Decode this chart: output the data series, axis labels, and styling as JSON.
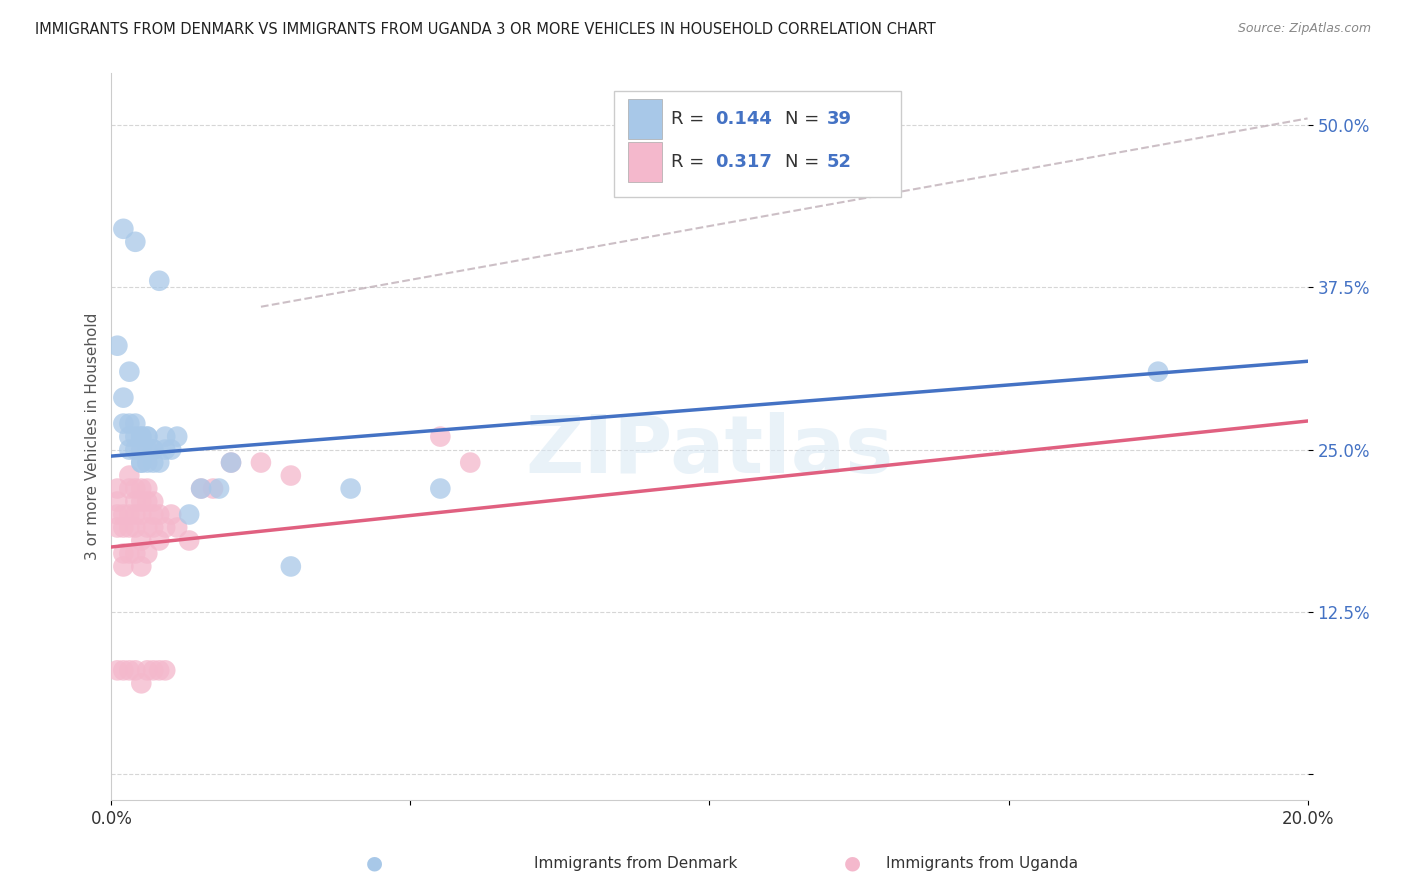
{
  "title": "IMMIGRANTS FROM DENMARK VS IMMIGRANTS FROM UGANDA 3 OR MORE VEHICLES IN HOUSEHOLD CORRELATION CHART",
  "source": "Source: ZipAtlas.com",
  "ylabel": "3 or more Vehicles in Household",
  "xlim": [
    0.0,
    0.2
  ],
  "ylim": [
    -0.02,
    0.54
  ],
  "denmark_color": "#a8c8e8",
  "uganda_color": "#f4b8cc",
  "denmark_line_color": "#4472c4",
  "uganda_line_color": "#e06080",
  "diagonal_line_color": "#c0b0b8",
  "background_color": "#ffffff",
  "watermark_text": "ZIPatlas",
  "denmark_line_x0": 0.0,
  "denmark_line_y0": 0.245,
  "denmark_line_x1": 0.2,
  "denmark_line_y1": 0.318,
  "uganda_line_x0": 0.0,
  "uganda_line_y0": 0.175,
  "uganda_line_x1": 0.2,
  "uganda_line_y1": 0.272,
  "diag_line_x0": 0.025,
  "diag_line_y0": 0.36,
  "diag_line_x1": 0.2,
  "diag_line_y1": 0.505,
  "denmark_scatter_x": [
    0.002,
    0.004,
    0.008,
    0.001,
    0.003,
    0.002,
    0.003,
    0.002,
    0.004,
    0.003,
    0.005,
    0.004,
    0.005,
    0.003,
    0.004,
    0.005,
    0.006,
    0.005,
    0.006,
    0.005,
    0.006,
    0.007,
    0.006,
    0.007,
    0.007,
    0.008,
    0.009,
    0.009,
    0.01,
    0.011,
    0.013,
    0.015,
    0.018,
    0.02,
    0.03,
    0.04,
    0.055,
    0.175
  ],
  "denmark_scatter_y": [
    0.42,
    0.41,
    0.38,
    0.33,
    0.31,
    0.29,
    0.27,
    0.27,
    0.26,
    0.26,
    0.26,
    0.27,
    0.26,
    0.25,
    0.25,
    0.25,
    0.26,
    0.24,
    0.25,
    0.24,
    0.24,
    0.25,
    0.26,
    0.25,
    0.24,
    0.24,
    0.26,
    0.25,
    0.25,
    0.26,
    0.2,
    0.22,
    0.22,
    0.24,
    0.16,
    0.22,
    0.22,
    0.31
  ],
  "uganda_scatter_x": [
    0.001,
    0.001,
    0.001,
    0.001,
    0.001,
    0.002,
    0.002,
    0.002,
    0.002,
    0.002,
    0.003,
    0.003,
    0.003,
    0.003,
    0.003,
    0.003,
    0.004,
    0.004,
    0.004,
    0.004,
    0.004,
    0.004,
    0.005,
    0.005,
    0.005,
    0.005,
    0.005,
    0.005,
    0.006,
    0.006,
    0.006,
    0.006,
    0.006,
    0.007,
    0.007,
    0.007,
    0.007,
    0.008,
    0.008,
    0.008,
    0.009,
    0.009,
    0.01,
    0.011,
    0.013,
    0.015,
    0.017,
    0.02,
    0.025,
    0.03,
    0.055,
    0.06
  ],
  "uganda_scatter_y": [
    0.22,
    0.21,
    0.2,
    0.19,
    0.08,
    0.2,
    0.19,
    0.17,
    0.16,
    0.08,
    0.23,
    0.22,
    0.2,
    0.19,
    0.17,
    0.08,
    0.22,
    0.21,
    0.2,
    0.19,
    0.17,
    0.08,
    0.22,
    0.21,
    0.2,
    0.18,
    0.16,
    0.07,
    0.22,
    0.21,
    0.19,
    0.17,
    0.08,
    0.21,
    0.2,
    0.19,
    0.08,
    0.2,
    0.18,
    0.08,
    0.19,
    0.08,
    0.2,
    0.19,
    0.18,
    0.22,
    0.22,
    0.24,
    0.24,
    0.23,
    0.26,
    0.24
  ]
}
